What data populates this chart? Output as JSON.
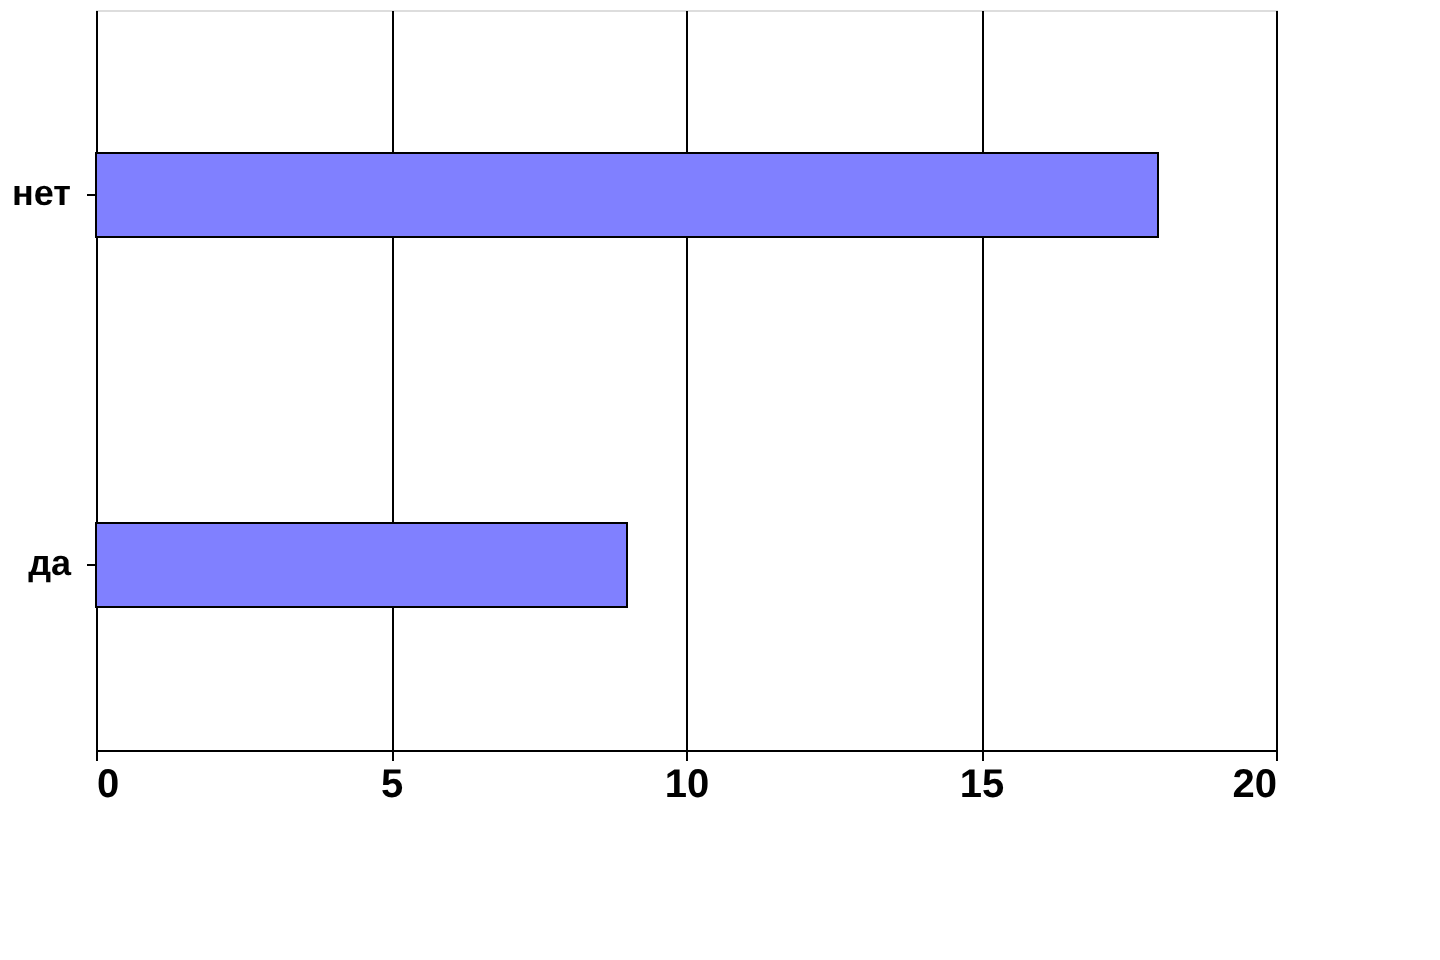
{
  "chart_data": {
    "type": "bar",
    "orientation": "horizontal",
    "categories": [
      "нет",
      "да"
    ],
    "values": [
      18,
      9
    ],
    "color": "#8080ff",
    "xlim": [
      0,
      20
    ],
    "xticks": [
      0,
      5,
      10,
      15,
      20
    ],
    "grid": "x"
  }
}
